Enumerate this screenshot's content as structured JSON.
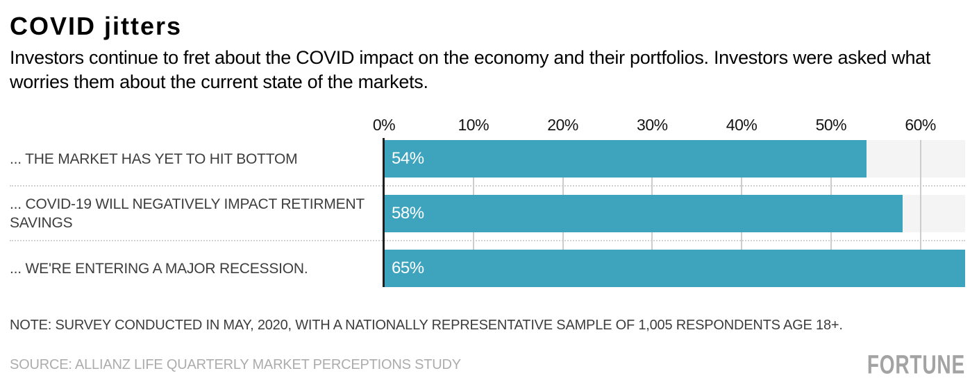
{
  "header": {
    "title": "COVID jitters",
    "subtitle": "Investors continue to fret about the COVID impact on the economy and their portfolios. Investors were asked what worries them about the current state of the markets."
  },
  "chart_data": {
    "type": "bar",
    "orientation": "horizontal",
    "categories": [
      "... THE MARKET HAS YET TO HIT BOTTOM",
      "... COVID-19 WILL NEGATIVELY IMPACT RETIRMENT SAVINGS",
      "... WE'RE ENTERING A MAJOR RECESSION."
    ],
    "values": [
      54,
      58,
      65
    ],
    "value_labels": [
      "54%",
      "58%",
      "65%"
    ],
    "xlim": [
      0,
      65
    ],
    "ticks": [
      {
        "value": 0,
        "label": "0%"
      },
      {
        "value": 10,
        "label": "10%"
      },
      {
        "value": 20,
        "label": "20%"
      },
      {
        "value": 30,
        "label": "30%"
      },
      {
        "value": 40,
        "label": "40%"
      },
      {
        "value": 50,
        "label": "50%"
      },
      {
        "value": 60,
        "label": "60%"
      }
    ],
    "grid": true,
    "legend": false,
    "colors": {
      "bar": "#3ea4be",
      "track": "#f4f4f4",
      "gridline": "#cccccc",
      "axis_line": "#1f1f1f"
    }
  },
  "footer": {
    "note": "NOTE: SURVEY CONDUCTED IN MAY, 2020, WITH A NATIONALLY REPRESENTATIVE SAMPLE OF 1,005 RESPONDENTS AGE 18+.",
    "source": "SOURCE: ALLIANZ LIFE QUARTERLY MARKET PERCEPTIONS STUDY",
    "logo": "FORTUNE"
  }
}
